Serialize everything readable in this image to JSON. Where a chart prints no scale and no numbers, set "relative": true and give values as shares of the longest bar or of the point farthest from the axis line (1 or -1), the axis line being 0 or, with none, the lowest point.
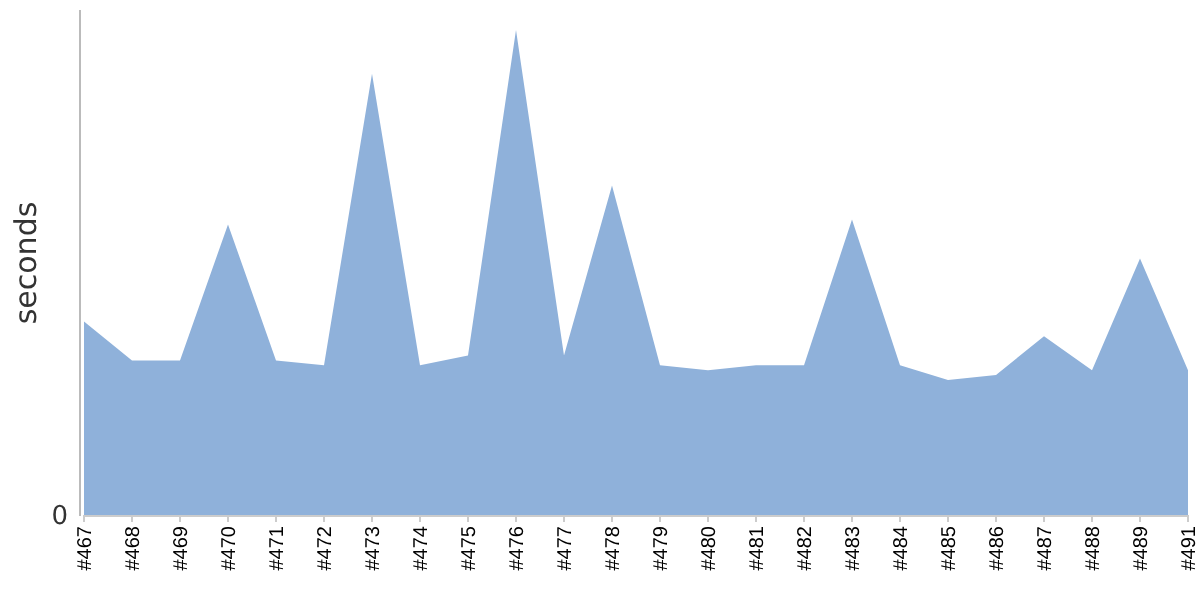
{
  "chart_data": {
    "type": "area",
    "ylabel": "seconds",
    "relative": true,
    "categories": [
      "#467",
      "#468",
      "#469",
      "#470",
      "#471",
      "#472",
      "#473",
      "#474",
      "#475",
      "#476",
      "#477",
      "#478",
      "#479",
      "#480",
      "#481",
      "#482",
      "#483",
      "#484",
      "#485",
      "#486",
      "#487",
      "#488",
      "#489",
      "#491"
    ],
    "series": [
      {
        "color": "#8fb1da",
        "values": [
          0.4,
          0.32,
          0.32,
          0.6,
          0.32,
          0.31,
          0.91,
          0.31,
          0.33,
          1,
          0.33,
          0.68,
          0.31,
          0.3,
          0.31,
          0.31,
          0.61,
          0.31,
          0.28,
          0.29,
          0.37,
          0.3,
          0.53,
          0.3
        ]
      }
    ],
    "annotations": [
      "0"
    ]
  }
}
